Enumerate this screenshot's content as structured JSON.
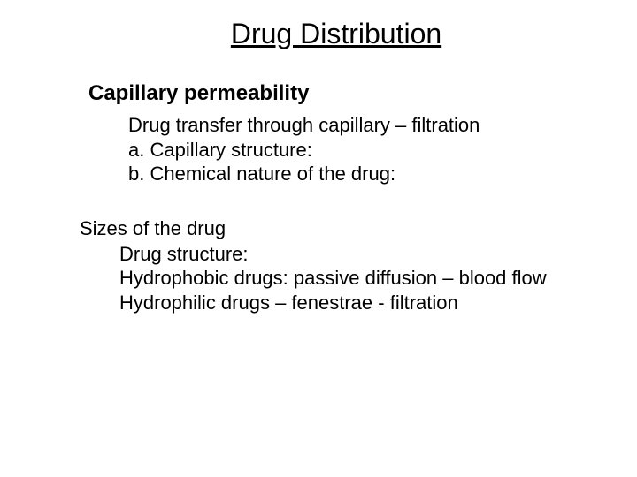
{
  "slide": {
    "title": "Drug Distribution",
    "section1": {
      "heading": "Capillary permeability",
      "lines": [
        "Drug transfer through capillary – filtration",
        "a. Capillary structure:",
        "b. Chemical nature of the drug:"
      ]
    },
    "section2": {
      "heading": "Sizes of the drug",
      "lines": [
        "Drug structure:",
        "Hydrophobic drugs: passive diffusion – blood flow",
        "Hydrophilic drugs – fenestrae - filtration"
      ]
    }
  },
  "style": {
    "background_color": "#ffffff",
    "text_color": "#000000",
    "title_fontsize": 32,
    "heading_fontsize": 24,
    "body_fontsize": 22,
    "font_family": "Arial"
  }
}
